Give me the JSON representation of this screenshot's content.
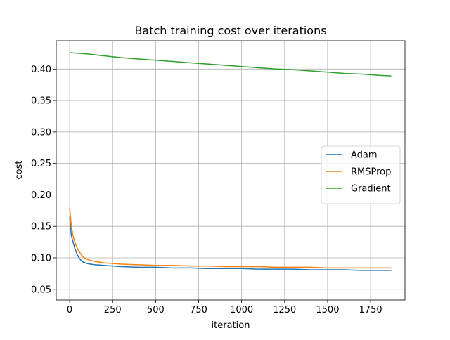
{
  "chart_data": {
    "type": "line",
    "title": "Batch training cost over iterations",
    "xlabel": "iteration",
    "ylabel": "cost",
    "xlim": [
      -78,
      1950
    ],
    "ylim": [
      0.033,
      0.445
    ],
    "xticks": [
      0,
      250,
      500,
      750,
      1000,
      1250,
      1500,
      1750
    ],
    "xtick_labels": [
      "0",
      "250",
      "500",
      "750",
      "1000",
      "1250",
      "1500",
      "1750"
    ],
    "yticks": [
      0.05,
      0.1,
      0.15,
      0.2,
      0.25,
      0.3,
      0.35,
      0.4
    ],
    "ytick_labels": [
      "0.05",
      "0.10",
      "0.15",
      "0.20",
      "0.25",
      "0.30",
      "0.35",
      "0.40"
    ],
    "grid": true,
    "legend_position": "center-right",
    "series": [
      {
        "name": "Adam",
        "color": "#1f77b4",
        "x": [
          0,
          10,
          20,
          30,
          40,
          50,
          60,
          70,
          80,
          100,
          120,
          150,
          200,
          250,
          300,
          400,
          500,
          600,
          700,
          800,
          900,
          1000,
          1100,
          1200,
          1300,
          1400,
          1500,
          1600,
          1700,
          1800,
          1870
        ],
        "y": [
          0.165,
          0.135,
          0.125,
          0.115,
          0.108,
          0.102,
          0.098,
          0.095,
          0.093,
          0.091,
          0.09,
          0.089,
          0.088,
          0.087,
          0.086,
          0.085,
          0.085,
          0.084,
          0.084,
          0.083,
          0.083,
          0.083,
          0.082,
          0.082,
          0.082,
          0.081,
          0.081,
          0.081,
          0.08,
          0.08,
          0.08
        ]
      },
      {
        "name": "RMSProp",
        "color": "#ff7f0e",
        "x": [
          0,
          10,
          20,
          30,
          40,
          50,
          60,
          70,
          80,
          100,
          120,
          150,
          200,
          250,
          300,
          400,
          500,
          600,
          700,
          800,
          900,
          1000,
          1100,
          1200,
          1300,
          1400,
          1500,
          1600,
          1700,
          1800,
          1870
        ],
        "y": [
          0.18,
          0.15,
          0.135,
          0.125,
          0.118,
          0.112,
          0.108,
          0.104,
          0.101,
          0.098,
          0.096,
          0.094,
          0.092,
          0.091,
          0.09,
          0.089,
          0.088,
          0.088,
          0.087,
          0.087,
          0.086,
          0.086,
          0.086,
          0.085,
          0.085,
          0.085,
          0.084,
          0.084,
          0.084,
          0.084,
          0.084
        ]
      },
      {
        "name": "Gradient",
        "color": "#2ca02c",
        "x": [
          0,
          100,
          200,
          300,
          400,
          500,
          600,
          700,
          800,
          900,
          1000,
          1100,
          1200,
          1300,
          1400,
          1500,
          1600,
          1700,
          1800,
          1870
        ],
        "y": [
          0.426,
          0.424,
          0.421,
          0.418,
          0.416,
          0.414,
          0.412,
          0.41,
          0.408,
          0.406,
          0.404,
          0.402,
          0.4,
          0.399,
          0.397,
          0.395,
          0.393,
          0.392,
          0.39,
          0.389
        ]
      }
    ]
  }
}
